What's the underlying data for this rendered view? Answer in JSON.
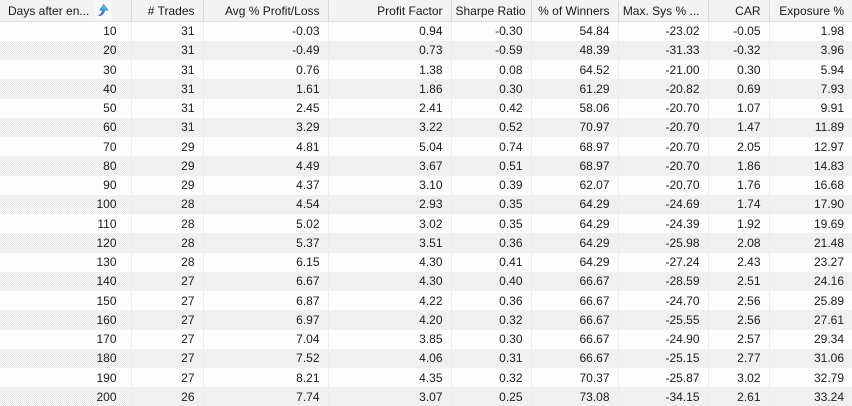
{
  "colors": {
    "header_bg": "#f3f3f3",
    "row_white": "#fdfdfd",
    "row_alt_stipple": "#e7e7e7",
    "grid_line": "#ececec",
    "header_grid_line": "#d9d9d9",
    "text": "#1b1b1b",
    "sort_icon_blue": "#3a55d4",
    "sort_icon_cyan": "#43e2f6"
  },
  "table": {
    "sort_icon": "sort-ascending-arrow-icon",
    "headers": [
      "Days after en...",
      "# Trades",
      "Avg % Profit/Loss",
      "Profit Factor",
      "Sharpe Ratio",
      "% of Winners",
      "Max. Sys % ...",
      "CAR",
      "Exposure %"
    ],
    "rows": [
      [
        "10",
        "31",
        "-0.03",
        "0.94",
        "-0.30",
        "54.84",
        "-23.02",
        "-0.05",
        "1.98"
      ],
      [
        "20",
        "31",
        "-0.49",
        "0.73",
        "-0.59",
        "48.39",
        "-31.33",
        "-0.32",
        "3.96"
      ],
      [
        "30",
        "31",
        "0.76",
        "1.38",
        "0.08",
        "64.52",
        "-21.00",
        "0.30",
        "5.94"
      ],
      [
        "40",
        "31",
        "1.61",
        "1.86",
        "0.30",
        "61.29",
        "-20.82",
        "0.69",
        "7.93"
      ],
      [
        "50",
        "31",
        "2.45",
        "2.41",
        "0.42",
        "58.06",
        "-20.70",
        "1.07",
        "9.91"
      ],
      [
        "60",
        "31",
        "3.29",
        "3.22",
        "0.52",
        "70.97",
        "-20.70",
        "1.47",
        "11.89"
      ],
      [
        "70",
        "29",
        "4.81",
        "5.04",
        "0.74",
        "68.97",
        "-20.70",
        "2.05",
        "12.97"
      ],
      [
        "80",
        "29",
        "4.49",
        "3.67",
        "0.51",
        "68.97",
        "-20.70",
        "1.86",
        "14.83"
      ],
      [
        "90",
        "29",
        "4.37",
        "3.10",
        "0.39",
        "62.07",
        "-20.70",
        "1.76",
        "16.68"
      ],
      [
        "100",
        "28",
        "4.54",
        "2.93",
        "0.35",
        "64.29",
        "-24.69",
        "1.74",
        "17.90"
      ],
      [
        "110",
        "28",
        "5.02",
        "3.02",
        "0.35",
        "64.29",
        "-24.39",
        "1.92",
        "19.69"
      ],
      [
        "120",
        "28",
        "5.37",
        "3.51",
        "0.36",
        "64.29",
        "-25.98",
        "2.08",
        "21.48"
      ],
      [
        "130",
        "28",
        "6.15",
        "4.30",
        "0.41",
        "64.29",
        "-27.24",
        "2.43",
        "23.27"
      ],
      [
        "140",
        "27",
        "6.67",
        "4.30",
        "0.40",
        "66.67",
        "-28.59",
        "2.51",
        "24.16"
      ],
      [
        "150",
        "27",
        "6.87",
        "4.22",
        "0.36",
        "66.67",
        "-24.70",
        "2.56",
        "25.89"
      ],
      [
        "160",
        "27",
        "6.97",
        "4.20",
        "0.32",
        "66.67",
        "-25.55",
        "2.56",
        "27.61"
      ],
      [
        "170",
        "27",
        "7.04",
        "3.85",
        "0.30",
        "66.67",
        "-24.90",
        "2.57",
        "29.34"
      ],
      [
        "180",
        "27",
        "7.52",
        "4.06",
        "0.31",
        "66.67",
        "-25.15",
        "2.77",
        "31.06"
      ],
      [
        "190",
        "27",
        "8.21",
        "4.35",
        "0.32",
        "70.37",
        "-25.87",
        "3.02",
        "32.79"
      ],
      [
        "200",
        "26",
        "7.74",
        "3.07",
        "0.25",
        "73.08",
        "-34.15",
        "2.61",
        "33.24"
      ]
    ]
  }
}
